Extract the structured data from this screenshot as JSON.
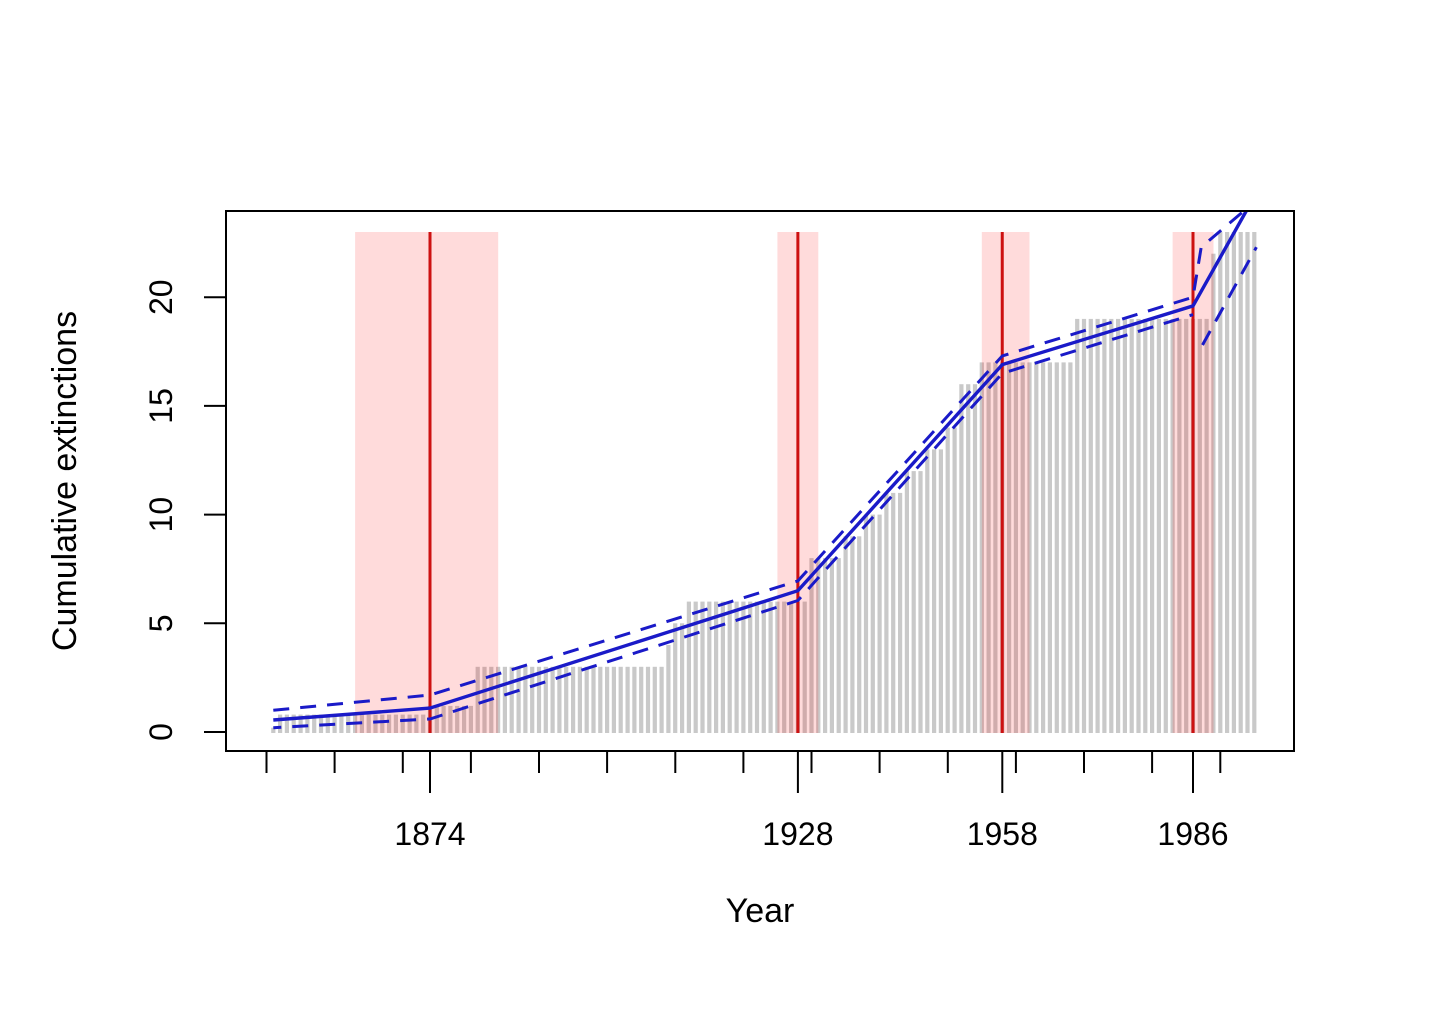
{
  "figure": {
    "background": "#ffffff"
  },
  "chart_data": {
    "type": "bar",
    "subtype": "cumulative step bars with segmented (breakpoint) regression fit and confidence lines",
    "title": "",
    "xlabel": "Year",
    "ylabel": "Cumulative extinctions",
    "xlim": [
      1844,
      2000.5
    ],
    "ylim": [
      -0.9,
      23.9
    ],
    "grid": false,
    "legend": "none",
    "y_ticks": [
      0,
      5,
      10,
      15,
      20
    ],
    "x_ticks_minor": [
      1850,
      1860,
      1870,
      1880,
      1890,
      1900,
      1910,
      1920,
      1930,
      1940,
      1950,
      1960,
      1970,
      1980,
      1990
    ],
    "x_ticks_labeled": [
      "1874",
      "1928",
      "1958",
      "1986"
    ],
    "bars": {
      "description": "cumulative extinctions per year (one thin grey bar per year)",
      "first_year": 1851,
      "last_year": 1995,
      "step_changes": [
        [
          1851,
          0.2
        ],
        [
          1852,
          0.8
        ],
        [
          1874,
          1.2
        ],
        [
          1881,
          3
        ],
        [
          1909,
          4
        ],
        [
          1910,
          5
        ],
        [
          1912,
          6
        ],
        [
          1930,
          8
        ],
        [
          1935,
          9
        ],
        [
          1938,
          10
        ],
        [
          1941,
          11
        ],
        [
          1944,
          12
        ],
        [
          1947,
          13
        ],
        [
          1950,
          14
        ],
        [
          1952,
          16
        ],
        [
          1955,
          17
        ],
        [
          1969,
          19
        ],
        [
          1989,
          22
        ],
        [
          1990,
          23
        ]
      ],
      "color": "#c9c9c9"
    },
    "breakpoints": [
      {
        "year": 1874,
        "ci": [
          1863,
          1884
        ]
      },
      {
        "year": 1928,
        "ci": [
          1925,
          1931
        ]
      },
      {
        "year": 1958,
        "ci": [
          1955,
          1962
        ]
      },
      {
        "year": 1986,
        "ci": [
          1983,
          1989
        ]
      }
    ],
    "band_top_value": 23,
    "fit": {
      "solid": [
        [
          1851,
          0.55
        ],
        [
          1874,
          1.1
        ],
        [
          1928,
          6.5
        ],
        [
          1958,
          16.9
        ],
        [
          1986,
          19.6
        ],
        [
          1994.6,
          24.4
        ]
      ],
      "upper_dashed": [
        [
          1851,
          1.0
        ],
        [
          1874,
          1.7
        ],
        [
          1928,
          6.95
        ],
        [
          1958,
          17.3
        ],
        [
          1986,
          20.0
        ],
        [
          1987.2,
          22.3
        ],
        [
          1993.4,
          23.95
        ]
      ],
      "lower_dashed": [
        [
          1851,
          0.2
        ],
        [
          1874,
          0.6
        ],
        [
          1928,
          6.05
        ],
        [
          1958,
          16.5
        ],
        [
          1986,
          19.2
        ]
      ],
      "lower_dashed_post_break": [
        [
          1987.4,
          17.8
        ],
        [
          1995.3,
          22.3
        ]
      ]
    },
    "colors": {
      "bar": "#c9c9c9",
      "breakpoint_line": "#cd1111",
      "breakpoint_band": "rgba(255,0,0,0.14)",
      "fit_line": "#1a1ac8",
      "axis": "#000000"
    }
  }
}
